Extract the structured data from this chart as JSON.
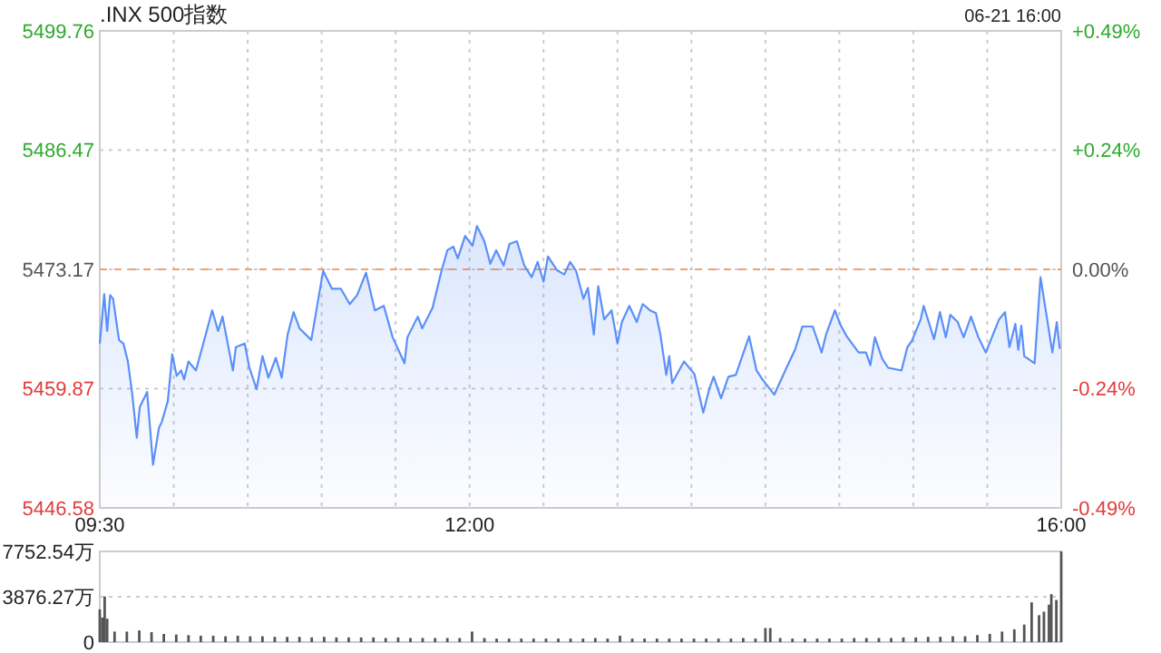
{
  "chart_data": [
    {
      "type": "area",
      "title": ".INX 500指数",
      "subtitle": "06-21 16:00",
      "grid": true,
      "xlim": [
        9.5,
        16
      ],
      "xticks": [
        {
          "value": 9.5,
          "label": "09:30"
        },
        {
          "value": 10,
          "label": null
        },
        {
          "value": 10.5,
          "label": null
        },
        {
          "value": 11,
          "label": null
        },
        {
          "value": 11.5,
          "label": null
        },
        {
          "value": 12,
          "label": "12:00"
        },
        {
          "value": 12.5,
          "label": null
        },
        {
          "value": 13,
          "label": null
        },
        {
          "value": 13.5,
          "label": null
        },
        {
          "value": 14,
          "label": null
        },
        {
          "value": 14.5,
          "label": null
        },
        {
          "value": 15,
          "label": null
        },
        {
          "value": 15.5,
          "label": null
        },
        {
          "value": 16,
          "label": "16:00"
        }
      ],
      "ylim": [
        5446.58,
        5499.76
      ],
      "yticks": [
        5446.58,
        5459.87,
        5473.17,
        5486.47,
        5499.76
      ],
      "y2lim": [
        -0.486,
        0.486
      ],
      "y2ticks": [
        {
          "value": -0.486,
          "label": "-0.49%"
        },
        {
          "value": -0.243,
          "label": "-0.24%"
        },
        {
          "value": 0,
          "label": "0.00%"
        },
        {
          "value": 0.243,
          "label": "+0.24%"
        },
        {
          "value": 0.486,
          "label": "+0.49%"
        }
      ],
      "ref_lines": [
        {
          "axis": "y",
          "value": 5473.17,
          "color": "#f0a070",
          "line_style": "dashed"
        }
      ],
      "series": [
        {
          "color": "#5b8ff9",
          "x": [
            9.5,
            9.53,
            9.55,
            9.57,
            9.59,
            9.63,
            9.66,
            9.69,
            9.72,
            9.75,
            9.77,
            9.82,
            9.86,
            9.9,
            9.92,
            9.96,
            9.99,
            10.02,
            10.05,
            10.07,
            10.1,
            10.15,
            10.2,
            10.26,
            10.3,
            10.33,
            10.4,
            10.42,
            10.48,
            10.51,
            10.56,
            10.6,
            10.64,
            10.69,
            10.73,
            10.77,
            10.81,
            10.85,
            10.93,
            11.01,
            11.07,
            11.13,
            11.19,
            11.24,
            11.3,
            11.36,
            11.42,
            11.48,
            11.56,
            11.58,
            11.65,
            11.68,
            11.75,
            11.81,
            11.85,
            11.89,
            11.92,
            11.97,
            12.02,
            12.05,
            12.1,
            12.14,
            12.18,
            12.23,
            12.27,
            12.32,
            12.37,
            12.42,
            12.46,
            12.5,
            12.53,
            12.59,
            12.64,
            12.68,
            12.72,
            12.77,
            12.8,
            12.84,
            12.87,
            12.91,
            12.96,
            13,
            13.03,
            13.08,
            13.13,
            13.17,
            13.22,
            13.26,
            13.29,
            13.33,
            13.35,
            13.37,
            13.45,
            13.52,
            13.58,
            13.62,
            13.65,
            13.7,
            13.75,
            13.8,
            13.89,
            13.94,
            13.98,
            14.06,
            14.14,
            14.2,
            14.25,
            14.32,
            14.38,
            14.41,
            14.47,
            14.51,
            14.55,
            14.63,
            14.68,
            14.71,
            14.74,
            14.79,
            14.83,
            14.92,
            14.96,
            14.99,
            15.05,
            15.07,
            15.14,
            15.18,
            15.22,
            15.25,
            15.3,
            15.34,
            15.39,
            15.44,
            15.49,
            15.58,
            15.62,
            15.65,
            15.69,
            15.71,
            15.73,
            15.75,
            15.82,
            15.86,
            15.94,
            15.97,
            15.99
          ],
          "values": [
            5464.9,
            5470.4,
            5466.3,
            5470.3,
            5469.9,
            5465.3,
            5464.9,
            5462.9,
            5459.2,
            5454.4,
            5457.8,
            5459.5,
            5451.4,
            5455.5,
            5456.2,
            5458.5,
            5463.7,
            5461.3,
            5461.9,
            5460.9,
            5462.9,
            5461.9,
            5464.9,
            5468.6,
            5466.3,
            5467.9,
            5461.9,
            5464.5,
            5464.9,
            5462.3,
            5459.8,
            5463.5,
            5461.1,
            5463.3,
            5461.1,
            5465.9,
            5468.4,
            5466.6,
            5465.3,
            5473.0,
            5471.0,
            5471.0,
            5469.3,
            5470.3,
            5472.8,
            5468.6,
            5469.1,
            5465.6,
            5462.7,
            5465.6,
            5467.9,
            5466.6,
            5468.9,
            5473.0,
            5475.3,
            5475.7,
            5474.4,
            5476.9,
            5475.8,
            5478.0,
            5476.3,
            5473.8,
            5475.3,
            5473.6,
            5476.0,
            5476.3,
            5473.6,
            5472.3,
            5474.0,
            5471.8,
            5474.6,
            5473.1,
            5472.6,
            5474.0,
            5473.0,
            5469.9,
            5471.1,
            5465.9,
            5471.3,
            5467.6,
            5468.6,
            5464.9,
            5467.3,
            5469.1,
            5467.3,
            5469.3,
            5468.6,
            5468.3,
            5465.9,
            5461.4,
            5463.5,
            5460.5,
            5462.9,
            5461.5,
            5457.2,
            5459.8,
            5461.2,
            5458.8,
            5461.2,
            5461.4,
            5465.7,
            5461.9,
            5460.9,
            5459.2,
            5462.1,
            5464.2,
            5466.8,
            5466.8,
            5463.9,
            5465.9,
            5468.6,
            5466.9,
            5465.7,
            5463.9,
            5463.9,
            5462.5,
            5465.6,
            5463.2,
            5462.2,
            5461.9,
            5464.5,
            5465.2,
            5467.6,
            5469.1,
            5465.4,
            5468.4,
            5465.6,
            5468.1,
            5467.3,
            5465.6,
            5467.9,
            5465.6,
            5463.9,
            5467.6,
            5468.4,
            5464.5,
            5467.1,
            5464.2,
            5466.9,
            5463.5,
            5462.7,
            5472.3,
            5463.9,
            5467.3,
            5464.3
          ]
        }
      ]
    },
    {
      "type": "bar",
      "grid": "y",
      "tick_labels": "y",
      "xlim": [
        9.5,
        16
      ],
      "ylim": [
        0,
        7752.54
      ],
      "yticks": [
        0,
        {
          "value": 3876.27,
          "label": "3876.27万"
        },
        {
          "value": 7752.54,
          "label": "7752.54万"
        }
      ],
      "series": [
        {
          "color": "#555555",
          "x": [
            9.5,
            9.517,
            9.533,
            9.55,
            9.6,
            9.683,
            9.767,
            9.85,
            9.933,
            10.017,
            10.1,
            10.183,
            10.267,
            10.35,
            10.433,
            10.517,
            10.6,
            10.683,
            10.767,
            10.85,
            10.933,
            11.017,
            11.1,
            11.183,
            11.267,
            11.35,
            11.433,
            11.517,
            11.6,
            11.683,
            11.767,
            11.85,
            11.933,
            12.017,
            12.1,
            12.183,
            12.267,
            12.35,
            12.433,
            12.517,
            12.6,
            12.683,
            12.767,
            12.85,
            12.933,
            13.017,
            13.1,
            13.183,
            13.267,
            13.35,
            13.433,
            13.517,
            13.6,
            13.683,
            13.767,
            13.85,
            13.933,
            14,
            14.033,
            14.1,
            14.183,
            14.267,
            14.35,
            14.433,
            14.517,
            14.6,
            14.683,
            14.767,
            14.85,
            14.933,
            15.017,
            15.1,
            15.183,
            15.267,
            15.35,
            15.433,
            15.517,
            15.6,
            15.683,
            15.75,
            15.8,
            15.85,
            15.883,
            15.917,
            15.933,
            15.967,
            16
          ],
          "values": [
            2800,
            2100,
            3900,
            2000,
            900,
            900,
            1000,
            850,
            700,
            650,
            600,
            550,
            550,
            500,
            550,
            500,
            500,
            450,
            450,
            450,
            400,
            450,
            400,
            400,
            400,
            400,
            350,
            400,
            350,
            350,
            350,
            350,
            350,
            900,
            350,
            300,
            300,
            300,
            300,
            300,
            300,
            300,
            300,
            350,
            300,
            550,
            300,
            300,
            300,
            300,
            300,
            300,
            300,
            300,
            300,
            350,
            300,
            1200,
            1200,
            350,
            300,
            300,
            300,
            300,
            300,
            350,
            350,
            350,
            350,
            400,
            400,
            450,
            450,
            500,
            500,
            600,
            700,
            900,
            1100,
            1500,
            3400,
            2300,
            2600,
            3200,
            4100,
            3600,
            7752.54
          ]
        }
      ]
    }
  ]
}
